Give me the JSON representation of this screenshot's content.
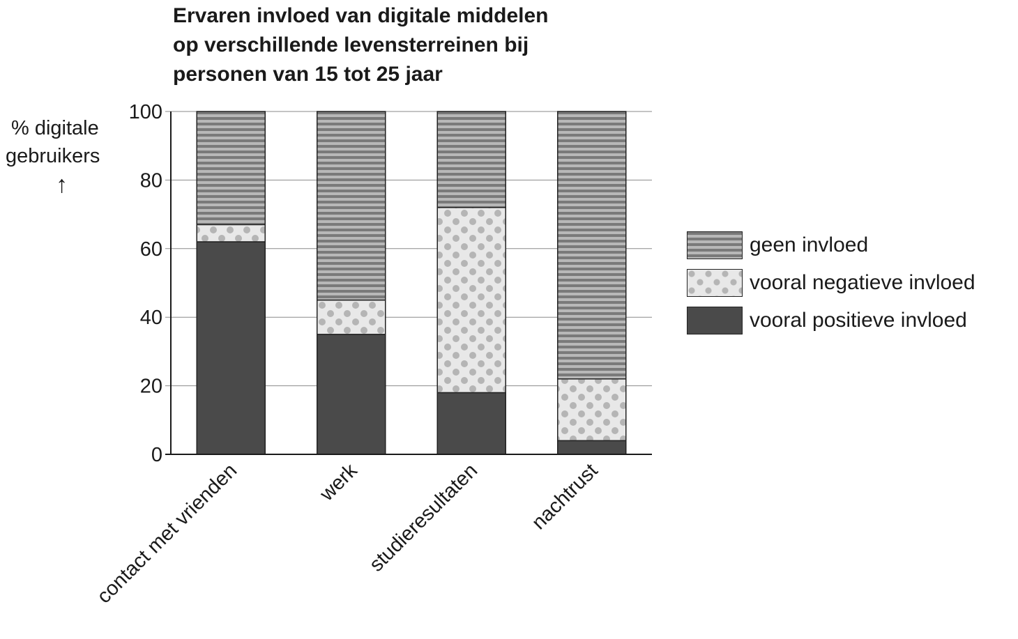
{
  "chart_data": {
    "type": "bar",
    "stacked": true,
    "title_lines": [
      "Ervaren invloed van digitale middelen",
      "op verschillende levensterreinen bij",
      "personen van 15 tot 25 jaar"
    ],
    "ylabel_lines": [
      "% digitale",
      "gebruikers"
    ],
    "ylabel_arrow": "↑",
    "xlabel": "",
    "ylim": [
      0,
      100
    ],
    "yticks": [
      "0",
      "20",
      "40",
      "60",
      "80",
      "100"
    ],
    "grid": true,
    "legend_position": "right",
    "categories": [
      "contact met vrienden",
      "werk",
      "studieresultaten",
      "nachtrust"
    ],
    "series": [
      {
        "name": "vooral positieve invloed",
        "pattern": "solid",
        "color": "#4a4a4a",
        "values": [
          62,
          35,
          18,
          4
        ]
      },
      {
        "name": "vooral negatieve invloed",
        "pattern": "dots",
        "color": "#e6e6e6",
        "values": [
          5,
          10,
          54,
          18
        ]
      },
      {
        "name": "geen invloed",
        "pattern": "stripes",
        "color": "#8c8c8c",
        "values": [
          33,
          55,
          28,
          78
        ]
      }
    ],
    "legend_order": [
      "geen invloed",
      "vooral negatieve invloed",
      "vooral positieve invloed"
    ]
  }
}
